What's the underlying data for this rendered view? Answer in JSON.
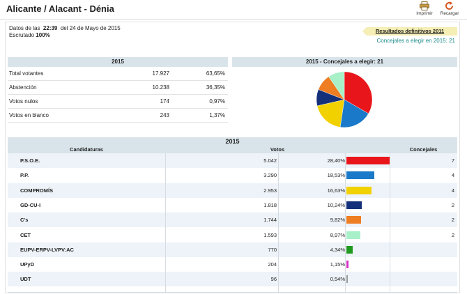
{
  "page": {
    "title": "Alicante / Alacant - Dénia",
    "toolbar": {
      "print_label": "Imprimir",
      "reload_label": "Recargar"
    }
  },
  "meta": {
    "datos_prefix": "Datos de las",
    "time": "22:39",
    "date_text": "del 24 de Mayo de 2015",
    "escrutado_label": "Escrutado",
    "escrutado_value": "100%"
  },
  "results_link": "Resultados definitivos 2011",
  "concejales_line": "Concejales a elegir en 2015: 21",
  "summary": {
    "header": "2015",
    "rows": [
      {
        "label": "Total votantes",
        "value": "17.927",
        "pct": "63,65%"
      },
      {
        "label": "Abstención",
        "value": "10.238",
        "pct": "36,35%"
      },
      {
        "label": "Votos nulos",
        "value": "174",
        "pct": "0,97%"
      },
      {
        "label": "Votos en blanco",
        "value": "243",
        "pct": "1,37%"
      }
    ]
  },
  "pie": {
    "header": "2015 - Concejales a elegir: 21",
    "slices": [
      {
        "party": "P.S.O.E.",
        "seats": 7,
        "color": "#e8161b"
      },
      {
        "party": "P.P.",
        "seats": 4,
        "color": "#1a7ac9"
      },
      {
        "party": "COMPROMÍS",
        "seats": 4,
        "color": "#f2d100"
      },
      {
        "party": "GD-CU-I",
        "seats": 2,
        "color": "#15307a"
      },
      {
        "party": "C's",
        "seats": 2,
        "color": "#ef7d22"
      },
      {
        "party": "CET",
        "seats": 2,
        "color": "#a8f0c8"
      }
    ]
  },
  "results": {
    "year": "2015",
    "headers": {
      "candidaturas": "Candidaturas",
      "votos": "Votos",
      "concejales": "Concejales"
    },
    "rows": [
      {
        "name": "P.S.O.E.",
        "votes": "5.042",
        "pct": "28,40%",
        "pct_value": 28.4,
        "concejales": "7",
        "color": "#e8161b"
      },
      {
        "name": "P.P.",
        "votes": "3.290",
        "pct": "18,53%",
        "pct_value": 18.53,
        "concejales": "4",
        "color": "#1a7ac9"
      },
      {
        "name": "COMPROMÍS",
        "votes": "2.953",
        "pct": "16,63%",
        "pct_value": 16.63,
        "concejales": "4",
        "color": "#f2d100"
      },
      {
        "name": "GD-CU-I",
        "votes": "1.818",
        "pct": "10,24%",
        "pct_value": 10.24,
        "concejales": "2",
        "color": "#15307a"
      },
      {
        "name": "C's",
        "votes": "1.744",
        "pct": "9,82%",
        "pct_value": 9.82,
        "concejales": "2",
        "color": "#ef7d22"
      },
      {
        "name": "CET",
        "votes": "1.593",
        "pct": "8,97%",
        "pct_value": 8.97,
        "concejales": "2",
        "color": "#a8f0c8"
      },
      {
        "name": "EUPV-ERPV-LVPV:AC",
        "votes": "770",
        "pct": "4,34%",
        "pct_value": 4.34,
        "concejales": "",
        "color": "#1f9a1f"
      },
      {
        "name": "UPyD",
        "votes": "204",
        "pct": "1,15%",
        "pct_value": 1.15,
        "concejales": "",
        "color": "#d633c8"
      },
      {
        "name": "UDT",
        "votes": "96",
        "pct": "0,54%",
        "pct_value": 0.54,
        "concejales": "",
        "color": "#999999"
      }
    ]
  }
}
